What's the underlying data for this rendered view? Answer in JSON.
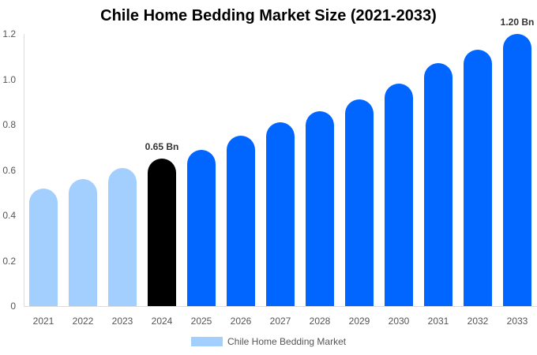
{
  "chart_data": {
    "type": "bar",
    "title": "Chile Home Bedding Market Size (2021-2033)",
    "xlabel": "",
    "ylabel": "",
    "ylim": [
      0,
      1.2
    ],
    "yticks": [
      "0",
      "0.2",
      "0.4",
      "0.6",
      "0.8",
      "1.0",
      "1.2"
    ],
    "grid": false,
    "legend_position": "bottom",
    "categories": [
      "2021",
      "2022",
      "2023",
      "2024",
      "2025",
      "2026",
      "2027",
      "2028",
      "2029",
      "2030",
      "2031",
      "2032",
      "2033"
    ],
    "series": [
      {
        "name": "Chile Home Bedding Market",
        "values": [
          0.52,
          0.56,
          0.61,
          0.65,
          0.69,
          0.75,
          0.81,
          0.86,
          0.91,
          0.98,
          1.07,
          1.13,
          1.2
        ]
      }
    ],
    "bar_colors": [
      "#a3cfff",
      "#a3cfff",
      "#a3cfff",
      "#000000",
      "#0066ff",
      "#0066ff",
      "#0066ff",
      "#0066ff",
      "#0066ff",
      "#0066ff",
      "#0066ff",
      "#0066ff",
      "#0066ff"
    ],
    "annotations": [
      {
        "category": "2024",
        "text": "0.65 Bn"
      },
      {
        "category": "2033",
        "text": "1.20 Bn"
      }
    ],
    "legend": [
      {
        "label": "Chile Home Bedding Market",
        "color": "#a3cfff"
      }
    ]
  }
}
